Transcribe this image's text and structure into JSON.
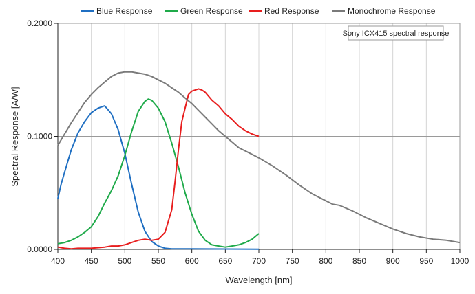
{
  "chart_data": {
    "type": "line",
    "title": "",
    "xlabel": "Wavelength [nm]",
    "ylabel": "Spectral Response [A/W]",
    "xlim": [
      400,
      1000
    ],
    "ylim": [
      0,
      0.2
    ],
    "x_ticks": [
      400,
      450,
      500,
      550,
      600,
      650,
      700,
      750,
      800,
      850,
      900,
      950,
      1000
    ],
    "x_tick_labels": [
      "400",
      "450",
      "500",
      "550",
      "600",
      "650",
      "700",
      "750",
      "800",
      "850",
      "900",
      "950",
      "1000"
    ],
    "y_ticks": [
      0,
      0.1,
      0.2
    ],
    "y_tick_labels": [
      "0.0000",
      "0.1000",
      "0.2000"
    ],
    "grid": true,
    "legend_position": "top",
    "annotation": "Sony ICX415 spectral response",
    "series": [
      {
        "name": "Blue Response",
        "color": "#1f6fc2",
        "x": [
          400,
          405,
          410,
          420,
          430,
          440,
          450,
          460,
          470,
          480,
          490,
          500,
          510,
          520,
          530,
          540,
          550,
          560,
          570,
          600,
          650,
          700
        ],
        "y": [
          0.045,
          0.058,
          0.068,
          0.088,
          0.103,
          0.113,
          0.121,
          0.125,
          0.127,
          0.12,
          0.106,
          0.085,
          0.058,
          0.033,
          0.016,
          0.007,
          0.003,
          0.001,
          0.0005,
          0.0005,
          0.0003,
          0.0002
        ]
      },
      {
        "name": "Green Response",
        "color": "#1faa4a",
        "x": [
          400,
          410,
          420,
          430,
          440,
          450,
          460,
          470,
          480,
          490,
          500,
          510,
          520,
          530,
          535,
          540,
          550,
          560,
          570,
          580,
          590,
          600,
          610,
          620,
          630,
          640,
          650,
          660,
          670,
          680,
          690,
          700
        ],
        "y": [
          0.005,
          0.006,
          0.008,
          0.011,
          0.015,
          0.02,
          0.029,
          0.041,
          0.052,
          0.065,
          0.083,
          0.104,
          0.122,
          0.131,
          0.133,
          0.132,
          0.125,
          0.113,
          0.094,
          0.073,
          0.05,
          0.031,
          0.016,
          0.008,
          0.004,
          0.003,
          0.002,
          0.003,
          0.004,
          0.006,
          0.009,
          0.014
        ]
      },
      {
        "name": "Red Response",
        "color": "#e81e1e",
        "x": [
          400,
          410,
          420,
          430,
          440,
          450,
          460,
          470,
          480,
          490,
          500,
          510,
          520,
          530,
          540,
          550,
          560,
          570,
          575,
          580,
          585,
          590,
          595,
          600,
          605,
          610,
          615,
          620,
          630,
          640,
          650,
          660,
          670,
          680,
          690,
          700
        ],
        "y": [
          0.002,
          0.001,
          0.0005,
          0.001,
          0.001,
          0.001,
          0.0015,
          0.002,
          0.003,
          0.003,
          0.004,
          0.006,
          0.008,
          0.009,
          0.008,
          0.009,
          0.015,
          0.035,
          0.06,
          0.088,
          0.113,
          0.125,
          0.137,
          0.14,
          0.141,
          0.142,
          0.141,
          0.139,
          0.132,
          0.127,
          0.12,
          0.115,
          0.109,
          0.105,
          0.102,
          0.1
        ]
      },
      {
        "name": "Monochrome Response",
        "color": "#7a7a7a",
        "x": [
          400,
          410,
          420,
          430,
          440,
          450,
          460,
          470,
          480,
          490,
          500,
          510,
          520,
          530,
          540,
          550,
          560,
          570,
          580,
          590,
          600,
          610,
          620,
          630,
          640,
          650,
          660,
          670,
          680,
          690,
          700,
          720,
          740,
          760,
          780,
          800,
          810,
          820,
          840,
          860,
          880,
          900,
          920,
          940,
          960,
          980,
          1000
        ],
        "y": [
          0.092,
          0.102,
          0.112,
          0.121,
          0.13,
          0.137,
          0.143,
          0.148,
          0.153,
          0.156,
          0.157,
          0.157,
          0.156,
          0.155,
          0.153,
          0.15,
          0.147,
          0.143,
          0.139,
          0.134,
          0.129,
          0.123,
          0.117,
          0.111,
          0.105,
          0.1,
          0.095,
          0.09,
          0.087,
          0.084,
          0.081,
          0.074,
          0.066,
          0.057,
          0.049,
          0.043,
          0.04,
          0.039,
          0.034,
          0.028,
          0.023,
          0.018,
          0.014,
          0.011,
          0.009,
          0.008,
          0.006
        ]
      }
    ]
  }
}
